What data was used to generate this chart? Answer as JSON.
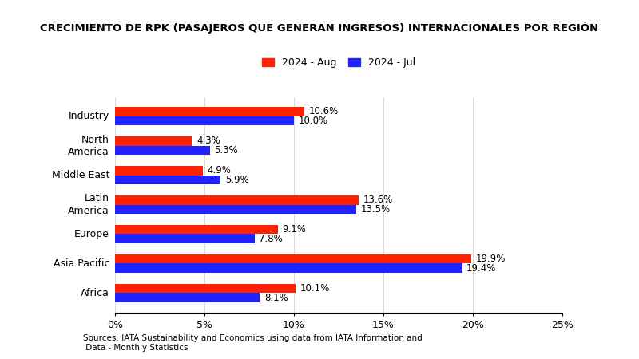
{
  "title": "CRECIMIENTO DE RPK (PASAJEROS QUE GENERAN INGRESOS) INTERNACIONALES POR REGIÓN",
  "categories": [
    "Africa",
    "Asia Pacific",
    "Europe",
    "Latin\nAmerica",
    "Middle East",
    "North\nAmerica",
    "Industry"
  ],
  "aug_values": [
    10.1,
    19.9,
    9.1,
    13.6,
    4.9,
    4.3,
    10.6
  ],
  "jul_values": [
    8.1,
    19.4,
    7.8,
    13.5,
    5.9,
    5.3,
    10.0
  ],
  "aug_color": "#ff2200",
  "jul_color": "#2222ff",
  "legend_aug": "2024 - Aug",
  "legend_jul": "2024 - Jul",
  "xlim": [
    0,
    25
  ],
  "xticks": [
    0,
    5,
    10,
    15,
    20,
    25
  ],
  "xticklabels": [
    "0%",
    "5%",
    "10%",
    "15%",
    "20%",
    "25%"
  ],
  "footnote": "Sources: IATA Sustainability and Economics using data from IATA Information and\n Data - Monthly Statistics",
  "background_color": "#ffffff",
  "title_fontsize": 9.5,
  "label_fontsize": 9,
  "tick_fontsize": 9,
  "bar_height": 0.32,
  "annotation_fontsize": 8.5
}
